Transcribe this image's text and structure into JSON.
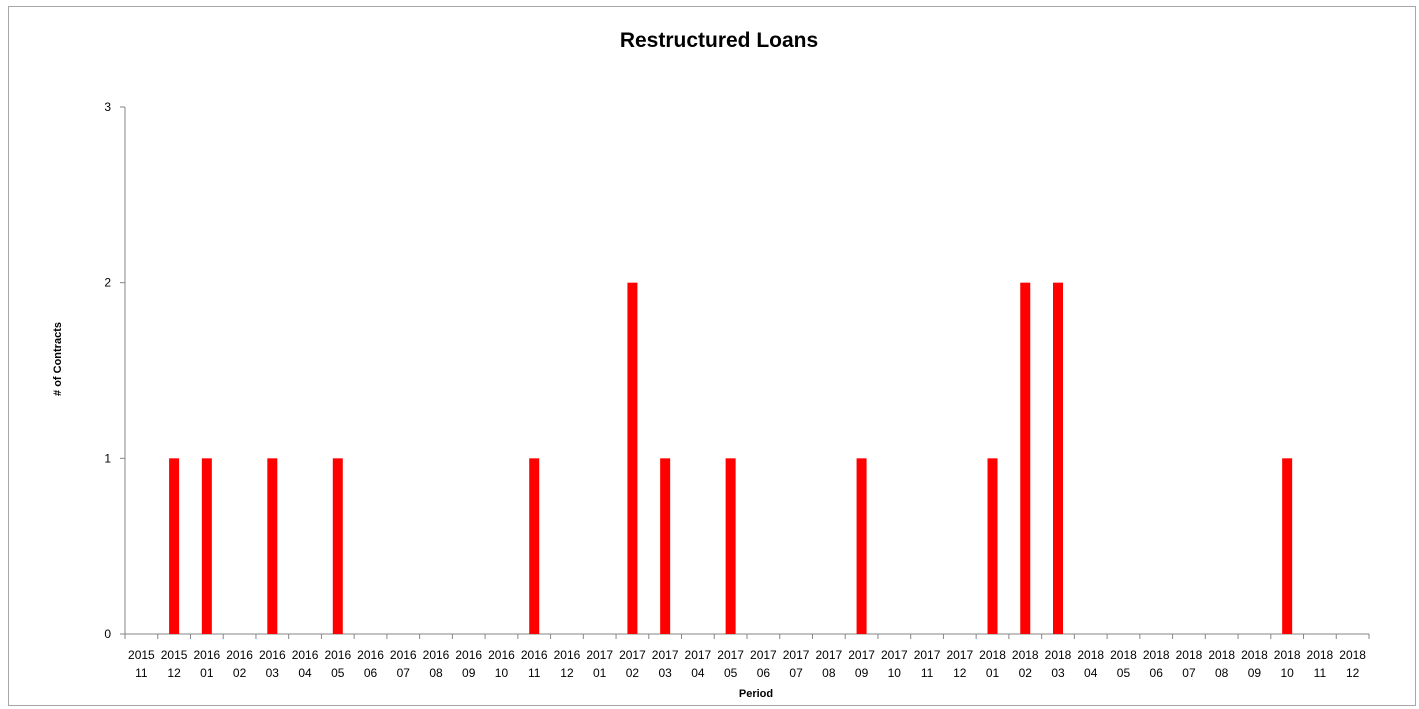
{
  "chart_data": {
    "type": "bar",
    "title": "Restructured Loans",
    "xlabel": "Period",
    "ylabel": "# of Contracts",
    "ylim": [
      0,
      3
    ],
    "yticks": [
      0,
      1,
      2,
      3
    ],
    "grid": false,
    "legend": "none",
    "bar_color": "#ff0000",
    "categories": [
      [
        "2015",
        "11"
      ],
      [
        "2015",
        "12"
      ],
      [
        "2016",
        "01"
      ],
      [
        "2016",
        "02"
      ],
      [
        "2016",
        "03"
      ],
      [
        "2016",
        "04"
      ],
      [
        "2016",
        "05"
      ],
      [
        "2016",
        "06"
      ],
      [
        "2016",
        "07"
      ],
      [
        "2016",
        "08"
      ],
      [
        "2016",
        "09"
      ],
      [
        "2016",
        "10"
      ],
      [
        "2016",
        "11"
      ],
      [
        "2016",
        "12"
      ],
      [
        "2017",
        "01"
      ],
      [
        "2017",
        "02"
      ],
      [
        "2017",
        "03"
      ],
      [
        "2017",
        "04"
      ],
      [
        "2017",
        "05"
      ],
      [
        "2017",
        "06"
      ],
      [
        "2017",
        "07"
      ],
      [
        "2017",
        "08"
      ],
      [
        "2017",
        "09"
      ],
      [
        "2017",
        "10"
      ],
      [
        "2017",
        "11"
      ],
      [
        "2017",
        "12"
      ],
      [
        "2018",
        "01"
      ],
      [
        "2018",
        "02"
      ],
      [
        "2018",
        "03"
      ],
      [
        "2018",
        "04"
      ],
      [
        "2018",
        "05"
      ],
      [
        "2018",
        "06"
      ],
      [
        "2018",
        "07"
      ],
      [
        "2018",
        "08"
      ],
      [
        "2018",
        "09"
      ],
      [
        "2018",
        "10"
      ],
      [
        "2018",
        "11"
      ],
      [
        "2018",
        "12"
      ]
    ],
    "values": [
      0,
      1,
      1,
      0,
      1,
      0,
      1,
      0,
      0,
      0,
      0,
      0,
      1,
      0,
      0,
      2,
      1,
      0,
      1,
      0,
      0,
      0,
      1,
      0,
      0,
      0,
      1,
      2,
      2,
      0,
      0,
      0,
      0,
      0,
      0,
      1,
      0,
      0
    ]
  }
}
